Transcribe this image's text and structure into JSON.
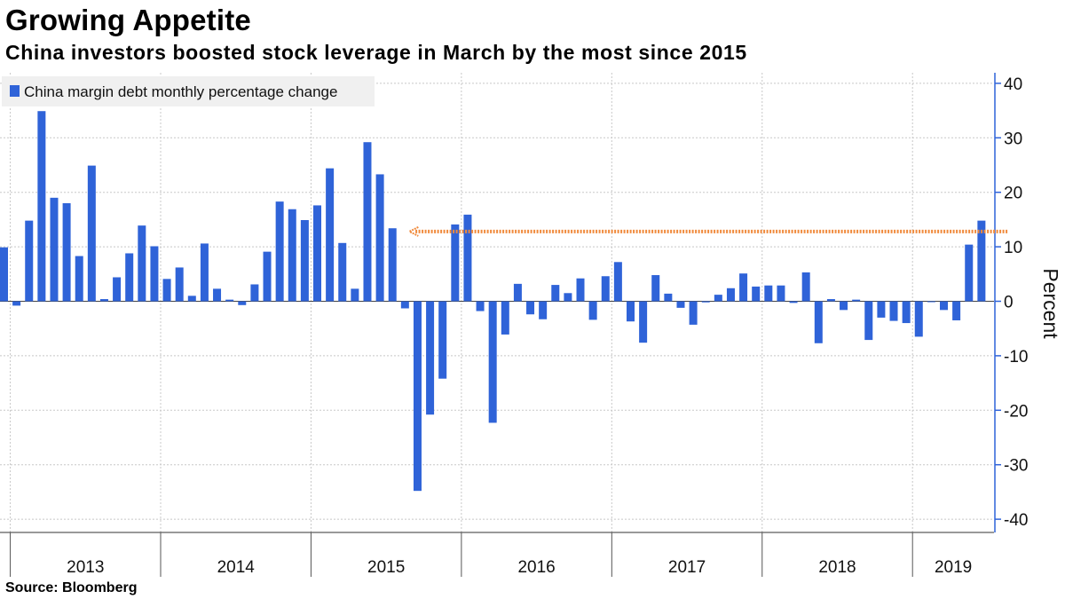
{
  "header": {
    "title": "Growing Appetite",
    "subtitle": "China investors boosted stock leverage in March by the most since 2015"
  },
  "footer": {
    "source": "Source:  Bloomberg"
  },
  "colors": {
    "bar": "#2f63d8",
    "arrow": "#f08a3c",
    "grid": "#c8c8c8",
    "axis": "#2f63d8"
  },
  "chart_data": {
    "type": "bar",
    "title": "Growing Appetite",
    "subtitle": "China investors boosted stock leverage in March by the most since 2015",
    "ylabel": "Percent",
    "xlabel": "",
    "ylim": [
      -42,
      42
    ],
    "yticks": [
      -40,
      -30,
      -20,
      -10,
      0,
      10,
      20,
      30,
      40
    ],
    "grid": true,
    "legend": {
      "position": "top-left",
      "entries": [
        "China margin debt monthly percentage change"
      ]
    },
    "x_year_labels": [
      "2013",
      "2014",
      "2015",
      "2016",
      "2017",
      "2018",
      "2019"
    ],
    "start": "2012-12",
    "series": [
      {
        "name": "China margin debt monthly percentage change",
        "values": [
          9.9,
          -0.8,
          14.8,
          34.9,
          19.0,
          18.0,
          8.3,
          24.9,
          0.4,
          4.4,
          8.8,
          13.9,
          10.1,
          4.1,
          6.2,
          1.0,
          10.6,
          2.3,
          0.3,
          -0.7,
          3.1,
          9.1,
          18.3,
          16.9,
          14.9,
          17.6,
          24.4,
          10.7,
          2.3,
          29.2,
          23.3,
          13.4,
          -1.3,
          -34.8,
          -20.8,
          -14.2,
          14.1,
          15.9,
          -1.8,
          -22.3,
          -6.1,
          3.2,
          -2.4,
          -3.3,
          3.0,
          1.5,
          4.2,
          -3.4,
          4.6,
          7.2,
          -3.7,
          -7.6,
          4.8,
          1.4,
          -1.2,
          -4.3,
          -0.2,
          1.2,
          2.4,
          5.1,
          2.7,
          2.9,
          2.9,
          -0.3,
          5.3,
          -7.7,
          0.4,
          -1.6,
          0.3,
          -7.1,
          -3.0,
          -3.6,
          -4.0,
          -6.5,
          -0.1,
          -1.6,
          -3.5,
          10.4,
          14.8
        ]
      }
    ],
    "annotations": [
      {
        "type": "arrow",
        "from_index": 80,
        "to_index": 32,
        "y": 12.8,
        "text": ""
      }
    ]
  }
}
